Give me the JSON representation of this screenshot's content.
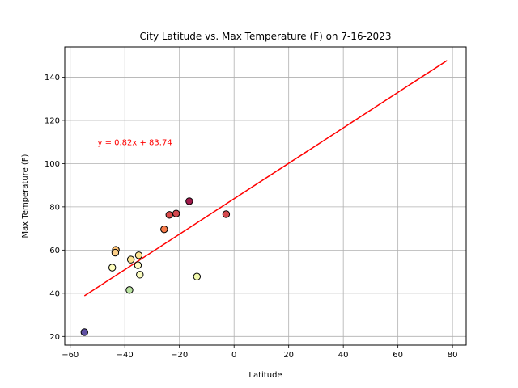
{
  "chart_data": {
    "type": "scatter",
    "title": "City Latitude vs. Max Temperature (F) on 7-16-2023",
    "xlabel": "Latitude",
    "ylabel": "Max Temperature (F)",
    "xlim": [
      -62,
      85
    ],
    "ylim": [
      16,
      154
    ],
    "xticks": [
      -60,
      -40,
      -20,
      0,
      20,
      40,
      60,
      80
    ],
    "yticks": [
      20,
      40,
      60,
      80,
      100,
      120,
      140
    ],
    "grid": true,
    "points": [
      {
        "x": -54.8,
        "y": 22.0,
        "color": "#5e4fa2"
      },
      {
        "x": -43.3,
        "y": 60.1,
        "color": "#fdbf6f"
      },
      {
        "x": -43.5,
        "y": 58.8,
        "color": "#fdd08a"
      },
      {
        "x": -44.6,
        "y": 51.9,
        "color": "#fefebd"
      },
      {
        "x": -38.3,
        "y": 41.5,
        "color": "#b9e3a0"
      },
      {
        "x": -37.8,
        "y": 55.6,
        "color": "#fee593"
      },
      {
        "x": -34.9,
        "y": 57.6,
        "color": "#fee593"
      },
      {
        "x": -35.2,
        "y": 53.0,
        "color": "#fffbc4"
      },
      {
        "x": -34.5,
        "y": 48.6,
        "color": "#fcfec0"
      },
      {
        "x": -25.6,
        "y": 69.6,
        "color": "#f67b4a"
      },
      {
        "x": -23.7,
        "y": 76.3,
        "color": "#dd4b4b"
      },
      {
        "x": -21.2,
        "y": 76.9,
        "color": "#d3484f"
      },
      {
        "x": -16.4,
        "y": 82.6,
        "color": "#a01a4b"
      },
      {
        "x": -13.6,
        "y": 47.7,
        "color": "#f2faae"
      },
      {
        "x": -2.9,
        "y": 76.6,
        "color": "#d54a4f"
      }
    ],
    "regression": {
      "slope": 0.82,
      "intercept": 83.74,
      "x_range": [
        -54.8,
        78.0
      ],
      "color": "#ff0000",
      "equation_label": "y = 0.82x + 83.74",
      "label_at": [
        -50,
        110
      ]
    }
  }
}
